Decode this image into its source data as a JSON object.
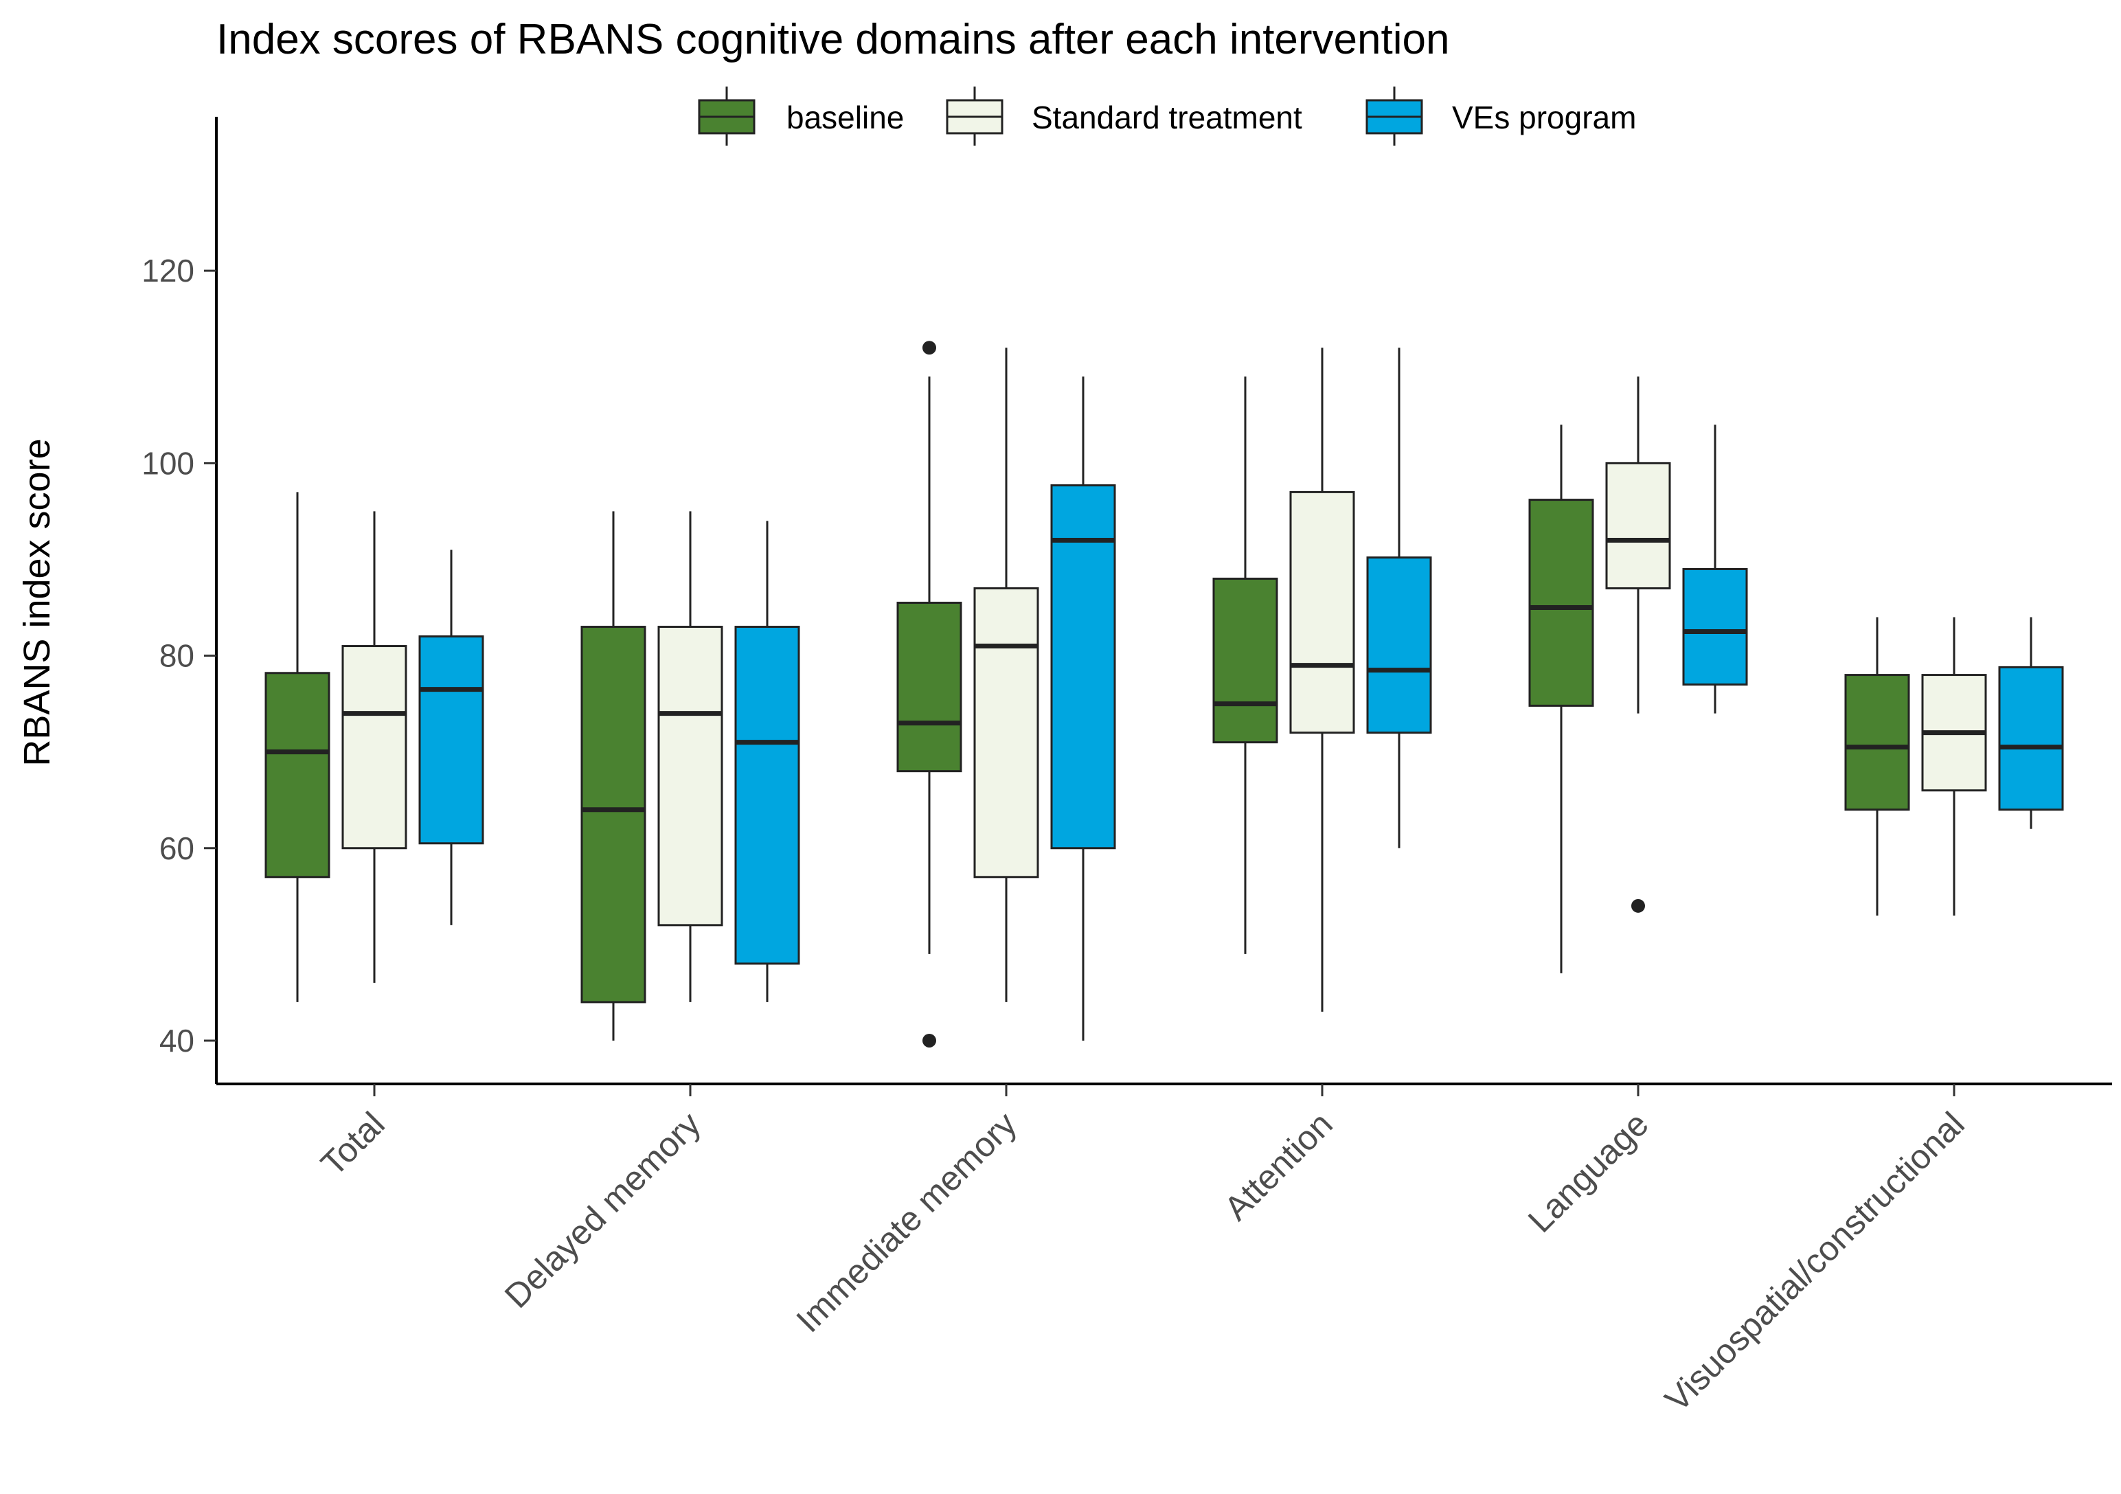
{
  "chart_data": {
    "type": "boxplot",
    "title": "Index scores of RBANS cognitive domains after each intervention",
    "xlabel": "",
    "ylabel": "RBANS index score",
    "ylim": [
      35.5,
      136
    ],
    "yticks": [
      40,
      60,
      80,
      100,
      120
    ],
    "categories": [
      "Total",
      "Delayed memory",
      "Immediate memory",
      "Attention",
      "Language",
      "Visuospatial/constructional"
    ],
    "legend": {
      "position": "top",
      "entries": [
        "baseline",
        "Standard treatment",
        "VEs program"
      ]
    },
    "series": [
      {
        "name": "baseline",
        "color": "#4a8230",
        "boxes": [
          {
            "min": 44,
            "q1": 57,
            "median": 70,
            "q3": 78.2,
            "max": 97,
            "outliers": []
          },
          {
            "min": 40,
            "q1": 44,
            "median": 64,
            "q3": 83,
            "max": 95,
            "outliers": []
          },
          {
            "min": 49,
            "q1": 68,
            "median": 73,
            "q3": 85.5,
            "max": 109,
            "outliers": [
              40,
              112
            ]
          },
          {
            "min": 49,
            "q1": 71,
            "median": 75,
            "q3": 88,
            "max": 109,
            "outliers": []
          },
          {
            "min": 47,
            "q1": 74.8,
            "median": 85,
            "q3": 96.2,
            "max": 104,
            "outliers": []
          },
          {
            "min": 53,
            "q1": 64,
            "median": 70.5,
            "q3": 78,
            "max": 84,
            "outliers": []
          }
        ]
      },
      {
        "name": "Standard treatment",
        "color": "#f1f5e8",
        "boxes": [
          {
            "min": 46,
            "q1": 60,
            "median": 74,
            "q3": 81,
            "max": 95,
            "outliers": []
          },
          {
            "min": 44,
            "q1": 52,
            "median": 74,
            "q3": 83,
            "max": 95,
            "outliers": []
          },
          {
            "min": 44,
            "q1": 57,
            "median": 81,
            "q3": 87,
            "max": 112,
            "outliers": []
          },
          {
            "min": 43,
            "q1": 72,
            "median": 79,
            "q3": 97,
            "max": 112,
            "outliers": []
          },
          {
            "min": 74,
            "q1": 87,
            "median": 92,
            "q3": 100,
            "max": 109,
            "outliers": [
              54
            ]
          },
          {
            "min": 53,
            "q1": 66,
            "median": 72,
            "q3": 78,
            "max": 84,
            "outliers": []
          }
        ]
      },
      {
        "name": "VEs program",
        "color": "#00a6e0",
        "boxes": [
          {
            "min": 52,
            "q1": 60.5,
            "median": 76.5,
            "q3": 82,
            "max": 91,
            "outliers": []
          },
          {
            "min": 44,
            "q1": 48,
            "median": 71,
            "q3": 83,
            "max": 94,
            "outliers": []
          },
          {
            "min": 40,
            "q1": 60,
            "median": 92,
            "q3": 97.7,
            "max": 109,
            "outliers": []
          },
          {
            "min": 60,
            "q1": 72,
            "median": 78.5,
            "q3": 90.2,
            "max": 112,
            "outliers": []
          },
          {
            "min": 74,
            "q1": 77,
            "median": 82.5,
            "q3": 89,
            "max": 104,
            "outliers": []
          },
          {
            "min": 62,
            "q1": 64,
            "median": 70.5,
            "q3": 78.8,
            "max": 84,
            "outliers": []
          }
        ]
      }
    ]
  }
}
